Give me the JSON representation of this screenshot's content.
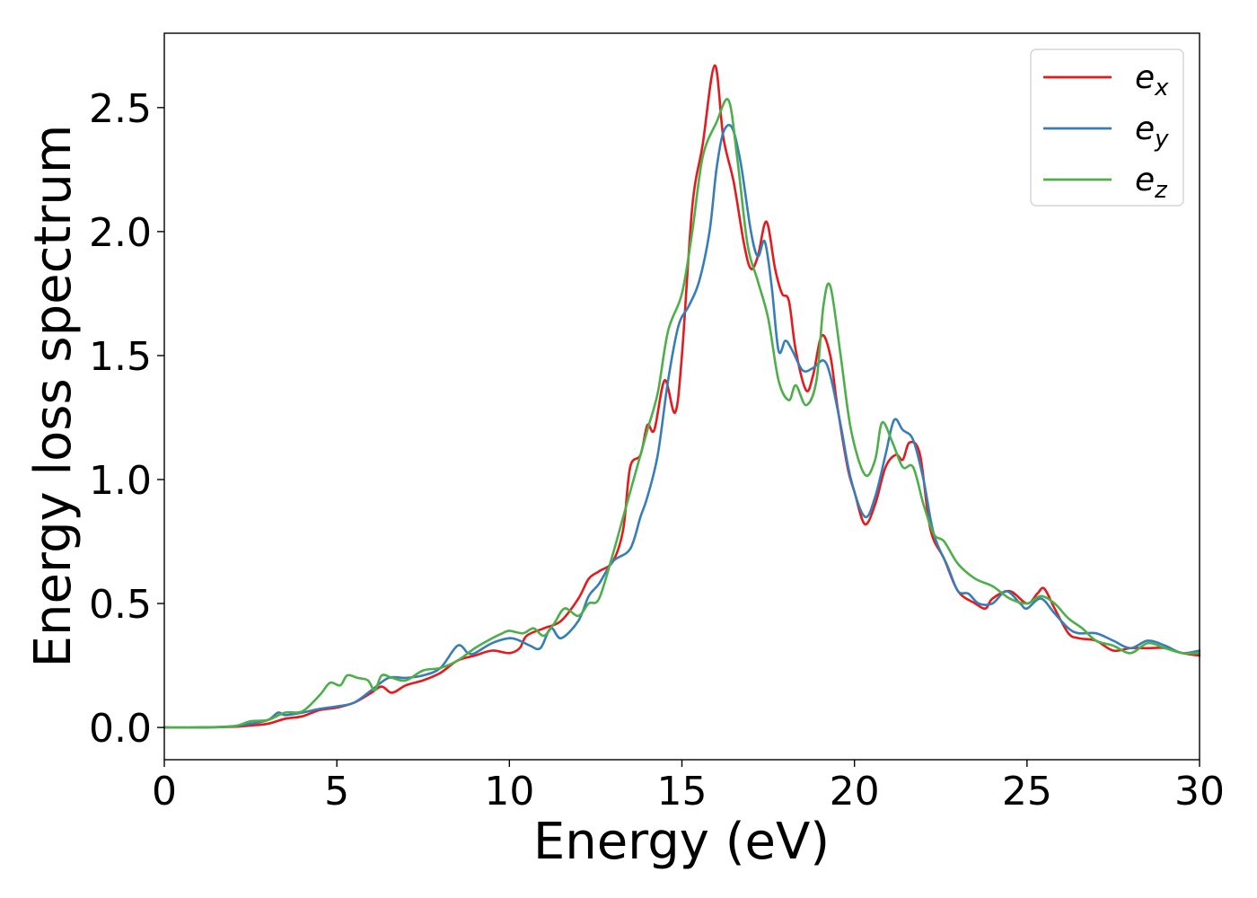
{
  "chart_data": {
    "type": "line",
    "title": "",
    "xlabel": "Energy (eV)",
    "ylabel": "Energy loss spectrum",
    "xlim": [
      0,
      30
    ],
    "ylim": [
      -0.13,
      2.8
    ],
    "xticks": [
      0,
      5,
      10,
      15,
      20,
      25,
      30
    ],
    "xtick_labels": [
      "0",
      "5",
      "10",
      "15",
      "20",
      "25",
      "30"
    ],
    "yticks": [
      0.0,
      0.5,
      1.0,
      1.5,
      2.0,
      2.5
    ],
    "ytick_labels": [
      "0.0",
      "0.5",
      "1.0",
      "1.5",
      "2.0",
      "2.5"
    ],
    "grid": false,
    "legend_position": "top-right",
    "series": [
      {
        "name": "e_x",
        "legend_base": "e",
        "legend_sub": "x",
        "color": "#e41a1c",
        "points": [
          [
            0,
            0.0
          ],
          [
            1,
            0.0
          ],
          [
            2,
            0.003
          ],
          [
            2.5,
            0.008
          ],
          [
            3,
            0.015
          ],
          [
            3.5,
            0.035
          ],
          [
            4,
            0.045
          ],
          [
            4.5,
            0.07
          ],
          [
            5,
            0.08
          ],
          [
            5.5,
            0.1
          ],
          [
            6,
            0.14
          ],
          [
            6.3,
            0.165
          ],
          [
            6.6,
            0.14
          ],
          [
            7,
            0.17
          ],
          [
            7.5,
            0.19
          ],
          [
            8,
            0.22
          ],
          [
            8.5,
            0.27
          ],
          [
            9,
            0.29
          ],
          [
            9.5,
            0.31
          ],
          [
            10,
            0.3
          ],
          [
            10.3,
            0.32
          ],
          [
            10.5,
            0.37
          ],
          [
            11,
            0.4
          ],
          [
            11.5,
            0.43
          ],
          [
            12,
            0.52
          ],
          [
            12.3,
            0.6
          ],
          [
            12.6,
            0.63
          ],
          [
            13,
            0.67
          ],
          [
            13.3,
            0.8
          ],
          [
            13.5,
            1.05
          ],
          [
            13.8,
            1.1
          ],
          [
            14,
            1.22
          ],
          [
            14.2,
            1.2
          ],
          [
            14.5,
            1.4
          ],
          [
            14.8,
            1.27
          ],
          [
            15,
            1.5
          ],
          [
            15.3,
            2.1
          ],
          [
            15.6,
            2.35
          ],
          [
            15.95,
            2.67
          ],
          [
            16.2,
            2.38
          ],
          [
            16.5,
            2.2
          ],
          [
            16.8,
            1.95
          ],
          [
            17,
            1.85
          ],
          [
            17.2,
            1.9
          ],
          [
            17.45,
            2.04
          ],
          [
            17.7,
            1.85
          ],
          [
            17.9,
            1.75
          ],
          [
            18.1,
            1.72
          ],
          [
            18.3,
            1.52
          ],
          [
            18.6,
            1.36
          ],
          [
            18.8,
            1.42
          ],
          [
            19.05,
            1.58
          ],
          [
            19.3,
            1.5
          ],
          [
            19.5,
            1.3
          ],
          [
            19.8,
            1.05
          ],
          [
            20,
            0.95
          ],
          [
            20.3,
            0.82
          ],
          [
            20.6,
            0.9
          ],
          [
            20.9,
            1.05
          ],
          [
            21.2,
            1.1
          ],
          [
            21.4,
            1.08
          ],
          [
            21.6,
            1.15
          ],
          [
            21.9,
            1.1
          ],
          [
            22.2,
            0.8
          ],
          [
            22.6,
            0.68
          ],
          [
            23,
            0.55
          ],
          [
            23.5,
            0.5
          ],
          [
            23.8,
            0.48
          ],
          [
            24,
            0.52
          ],
          [
            24.5,
            0.55
          ],
          [
            25,
            0.5
          ],
          [
            25.3,
            0.54
          ],
          [
            25.5,
            0.56
          ],
          [
            25.8,
            0.48
          ],
          [
            26.2,
            0.38
          ],
          [
            26.5,
            0.36
          ],
          [
            27,
            0.35
          ],
          [
            27.5,
            0.31
          ],
          [
            28,
            0.32
          ],
          [
            28.5,
            0.32
          ],
          [
            29,
            0.32
          ],
          [
            29.5,
            0.3
          ],
          [
            30,
            0.29
          ]
        ]
      },
      {
        "name": "e_y",
        "legend_base": "e",
        "legend_sub": "y",
        "color": "#377eb8",
        "points": [
          [
            0,
            0.0
          ],
          [
            1,
            0.0
          ],
          [
            2,
            0.005
          ],
          [
            2.5,
            0.015
          ],
          [
            3,
            0.03
          ],
          [
            3.3,
            0.06
          ],
          [
            3.5,
            0.05
          ],
          [
            4,
            0.06
          ],
          [
            4.5,
            0.075
          ],
          [
            5,
            0.085
          ],
          [
            5.5,
            0.1
          ],
          [
            6,
            0.15
          ],
          [
            6.5,
            0.2
          ],
          [
            7,
            0.2
          ],
          [
            7.5,
            0.21
          ],
          [
            8,
            0.24
          ],
          [
            8.5,
            0.33
          ],
          [
            8.8,
            0.3
          ],
          [
            9,
            0.3
          ],
          [
            9.5,
            0.34
          ],
          [
            10,
            0.36
          ],
          [
            10.3,
            0.35
          ],
          [
            10.6,
            0.33
          ],
          [
            10.9,
            0.32
          ],
          [
            11.2,
            0.4
          ],
          [
            11.5,
            0.36
          ],
          [
            12,
            0.43
          ],
          [
            12.3,
            0.53
          ],
          [
            12.6,
            0.58
          ],
          [
            13,
            0.67
          ],
          [
            13.5,
            0.72
          ],
          [
            13.8,
            0.85
          ],
          [
            14,
            0.93
          ],
          [
            14.3,
            1.1
          ],
          [
            14.6,
            1.4
          ],
          [
            14.9,
            1.62
          ],
          [
            15.2,
            1.7
          ],
          [
            15.5,
            1.8
          ],
          [
            15.8,
            2.0
          ],
          [
            16.0,
            2.25
          ],
          [
            16.2,
            2.4
          ],
          [
            16.45,
            2.42
          ],
          [
            16.7,
            2.28
          ],
          [
            17,
            2.0
          ],
          [
            17.2,
            1.9
          ],
          [
            17.4,
            1.96
          ],
          [
            17.6,
            1.78
          ],
          [
            17.8,
            1.52
          ],
          [
            18,
            1.56
          ],
          [
            18.2,
            1.52
          ],
          [
            18.5,
            1.44
          ],
          [
            18.8,
            1.45
          ],
          [
            19.1,
            1.48
          ],
          [
            19.3,
            1.42
          ],
          [
            19.6,
            1.22
          ],
          [
            19.9,
            1.0
          ],
          [
            20.3,
            0.85
          ],
          [
            20.6,
            0.93
          ],
          [
            20.9,
            1.1
          ],
          [
            21.15,
            1.24
          ],
          [
            21.4,
            1.2
          ],
          [
            21.7,
            1.16
          ],
          [
            22.0,
            1.0
          ],
          [
            22.3,
            0.78
          ],
          [
            22.7,
            0.65
          ],
          [
            23,
            0.55
          ],
          [
            23.3,
            0.54
          ],
          [
            23.6,
            0.5
          ],
          [
            24,
            0.5
          ],
          [
            24.4,
            0.55
          ],
          [
            24.8,
            0.5
          ],
          [
            25,
            0.48
          ],
          [
            25.4,
            0.52
          ],
          [
            25.8,
            0.46
          ],
          [
            26.2,
            0.4
          ],
          [
            26.5,
            0.38
          ],
          [
            27,
            0.38
          ],
          [
            27.5,
            0.35
          ],
          [
            28,
            0.32
          ],
          [
            28.5,
            0.35
          ],
          [
            29,
            0.33
          ],
          [
            29.5,
            0.3
          ],
          [
            30,
            0.31
          ]
        ]
      },
      {
        "name": "e_z",
        "legend_base": "e",
        "legend_sub": "z",
        "color": "#4daf4a",
        "points": [
          [
            0,
            0.0
          ],
          [
            1,
            0.0
          ],
          [
            2,
            0.005
          ],
          [
            2.5,
            0.025
          ],
          [
            3,
            0.03
          ],
          [
            3.5,
            0.06
          ],
          [
            4,
            0.065
          ],
          [
            4.5,
            0.13
          ],
          [
            4.8,
            0.18
          ],
          [
            5.1,
            0.17
          ],
          [
            5.3,
            0.21
          ],
          [
            5.6,
            0.2
          ],
          [
            5.9,
            0.19
          ],
          [
            6.1,
            0.15
          ],
          [
            6.3,
            0.21
          ],
          [
            6.6,
            0.2
          ],
          [
            7,
            0.19
          ],
          [
            7.5,
            0.23
          ],
          [
            8,
            0.24
          ],
          [
            8.5,
            0.27
          ],
          [
            9,
            0.32
          ],
          [
            9.5,
            0.36
          ],
          [
            9.8,
            0.38
          ],
          [
            10,
            0.39
          ],
          [
            10.4,
            0.38
          ],
          [
            10.7,
            0.4
          ],
          [
            11,
            0.37
          ],
          [
            11.3,
            0.42
          ],
          [
            11.6,
            0.48
          ],
          [
            12,
            0.45
          ],
          [
            12.3,
            0.5
          ],
          [
            12.6,
            0.52
          ],
          [
            13,
            0.7
          ],
          [
            13.3,
            0.85
          ],
          [
            13.6,
            1.0
          ],
          [
            14,
            1.2
          ],
          [
            14.3,
            1.35
          ],
          [
            14.6,
            1.6
          ],
          [
            15,
            1.75
          ],
          [
            15.3,
            2.0
          ],
          [
            15.6,
            2.3
          ],
          [
            16.0,
            2.44
          ],
          [
            16.35,
            2.53
          ],
          [
            16.6,
            2.3
          ],
          [
            16.9,
            1.95
          ],
          [
            17.2,
            1.8
          ],
          [
            17.5,
            1.65
          ],
          [
            17.8,
            1.4
          ],
          [
            18.1,
            1.32
          ],
          [
            18.3,
            1.38
          ],
          [
            18.6,
            1.3
          ],
          [
            18.9,
            1.4
          ],
          [
            19.1,
            1.7
          ],
          [
            19.3,
            1.78
          ],
          [
            19.6,
            1.5
          ],
          [
            19.9,
            1.2
          ],
          [
            20.3,
            1.02
          ],
          [
            20.6,
            1.08
          ],
          [
            20.8,
            1.23
          ],
          [
            21.1,
            1.15
          ],
          [
            21.4,
            1.05
          ],
          [
            21.7,
            1.05
          ],
          [
            22.0,
            0.9
          ],
          [
            22.3,
            0.78
          ],
          [
            22.6,
            0.75
          ],
          [
            23,
            0.66
          ],
          [
            23.5,
            0.6
          ],
          [
            24,
            0.57
          ],
          [
            24.5,
            0.52
          ],
          [
            25,
            0.5
          ],
          [
            25.4,
            0.53
          ],
          [
            25.8,
            0.5
          ],
          [
            26.2,
            0.44
          ],
          [
            26.6,
            0.4
          ],
          [
            27,
            0.35
          ],
          [
            27.5,
            0.33
          ],
          [
            28,
            0.3
          ],
          [
            28.5,
            0.34
          ],
          [
            29,
            0.32
          ],
          [
            29.5,
            0.3
          ],
          [
            30,
            0.3
          ]
        ]
      }
    ]
  }
}
